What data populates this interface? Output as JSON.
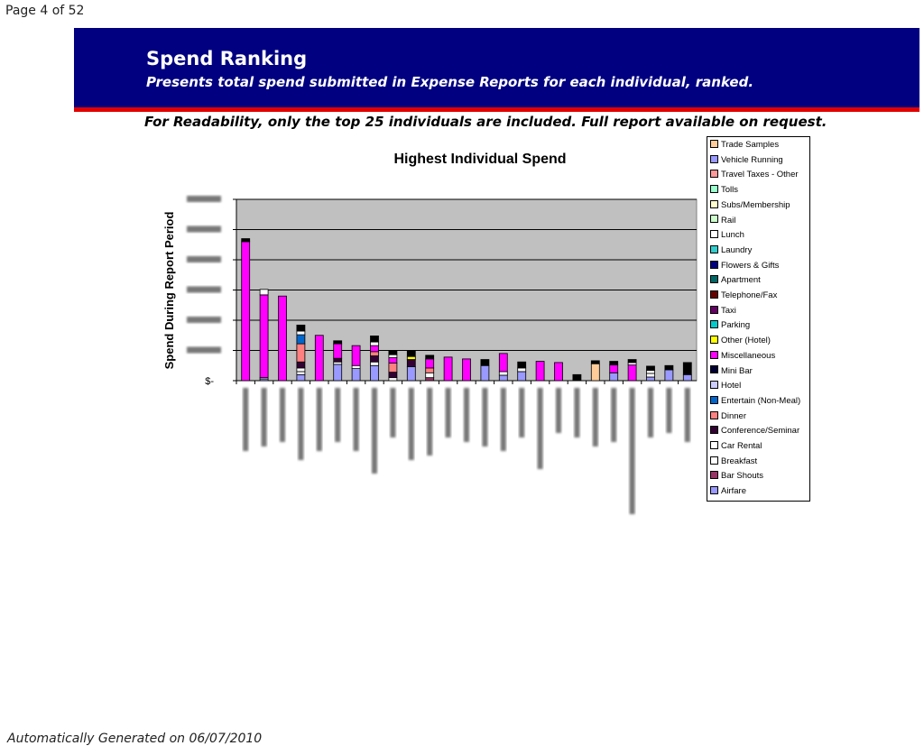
{
  "page": {
    "number_label": "Page 4 of  52"
  },
  "banner": {
    "title": "Spend Ranking",
    "subtitle": "Presents total spend submitted in Expense Reports for each individual, ranked."
  },
  "note": "For Readability, only the top 25 individuals are included.  Full report available on request.",
  "footer": "Automatically Generated on 06/07/2010",
  "chart_data": {
    "type": "bar",
    "stacked": true,
    "title": "Highest Individual Spend",
    "ylabel": "Spend During Report Period",
    "xlabel": "",
    "ylim": [
      0,
      30000
    ],
    "y_ticks": [
      0,
      5000,
      10000,
      15000,
      20000,
      25000,
      30000
    ],
    "y_tick_labels_visible": [
      "$-"
    ],
    "y_tick_labels_blurred": true,
    "x_tick_labels_blurred": true,
    "categories": [
      "1",
      "2",
      "3",
      "4",
      "5",
      "6",
      "7",
      "8",
      "9",
      "10",
      "11",
      "12",
      "13",
      "14",
      "15",
      "16",
      "17",
      "18",
      "19",
      "20",
      "21",
      "22",
      "23",
      "24",
      "25"
    ],
    "grid": true,
    "plot_background": "#c0c0c0",
    "legend_position": "right",
    "series": [
      {
        "name": "Trade Samples",
        "color": "#ffcc99",
        "values": [
          0,
          0,
          0,
          0,
          0,
          0,
          0,
          0,
          0,
          0,
          0,
          0,
          0,
          0,
          0,
          0,
          0,
          0,
          0,
          2800,
          0,
          0,
          0,
          0,
          0
        ]
      },
      {
        "name": "Vehicle Running",
        "color": "#9999ff",
        "values": [
          0,
          0,
          0,
          0,
          0,
          0,
          0,
          0,
          0,
          0,
          0,
          0,
          0,
          0,
          0,
          0,
          0,
          0,
          0,
          0,
          0,
          0,
          0,
          0,
          0
        ]
      },
      {
        "name": "Travel Taxes - Other",
        "color": "#ff9999",
        "values": [
          0,
          0,
          0,
          0,
          0,
          0,
          0,
          0,
          0,
          0,
          0,
          0,
          0,
          0,
          0,
          0,
          0,
          0,
          0,
          0,
          0,
          0,
          0,
          0,
          0
        ]
      },
      {
        "name": "Tolls",
        "color": "#99ffcc",
        "values": [
          0,
          0,
          0,
          0,
          0,
          0,
          0,
          0,
          0,
          0,
          0,
          0,
          0,
          0,
          0,
          0,
          0,
          0,
          0,
          0,
          0,
          0,
          0,
          0,
          0
        ]
      },
      {
        "name": "Subs/Membership",
        "color": "#ffffcc",
        "values": [
          0,
          0,
          0,
          0,
          0,
          0,
          0,
          0,
          0,
          0,
          0,
          0,
          0,
          0,
          0,
          0,
          0,
          0,
          0,
          0,
          0,
          0,
          0,
          0,
          0
        ]
      },
      {
        "name": "Rail",
        "color": "#ccffcc",
        "values": [
          0,
          0,
          0,
          0,
          0,
          0,
          0,
          0,
          0,
          0,
          0,
          0,
          0,
          0,
          0,
          0,
          0,
          0,
          0,
          0,
          0,
          0,
          0,
          0,
          0
        ]
      },
      {
        "name": "Lunch",
        "color": "#ffffff",
        "values": [
          0,
          900,
          0,
          600,
          0,
          0,
          0,
          600,
          500,
          0,
          0,
          0,
          0,
          0,
          0,
          600,
          0,
          0,
          0,
          0,
          0,
          400,
          500,
          0,
          0
        ]
      },
      {
        "name": "Laundry",
        "color": "#33cccc",
        "values": [
          0,
          0,
          0,
          0,
          0,
          0,
          0,
          0,
          0,
          0,
          0,
          0,
          0,
          0,
          0,
          0,
          0,
          0,
          0,
          0,
          0,
          0,
          0,
          0,
          0
        ]
      },
      {
        "name": "Flowers & Gifts",
        "color": "#000080",
        "values": [
          0,
          0,
          0,
          0,
          0,
          0,
          0,
          0,
          0,
          0,
          0,
          0,
          0,
          0,
          0,
          0,
          0,
          0,
          0,
          0,
          0,
          0,
          0,
          0,
          0
        ]
      },
      {
        "name": "Apartment",
        "color": "#006666",
        "values": [
          0,
          0,
          0,
          0,
          0,
          0,
          0,
          0,
          0,
          0,
          0,
          0,
          0,
          0,
          0,
          0,
          0,
          0,
          0,
          0,
          0,
          0,
          0,
          0,
          0
        ]
      },
      {
        "name": "Telephone/Fax",
        "color": "#660000",
        "values": [
          0,
          0,
          0,
          0,
          0,
          0,
          0,
          0,
          0,
          0,
          0,
          0,
          0,
          0,
          0,
          0,
          0,
          0,
          0,
          0,
          0,
          0,
          0,
          0,
          0
        ]
      },
      {
        "name": "Taxi",
        "color": "#660066",
        "values": [
          0,
          0,
          0,
          0,
          0,
          0,
          0,
          0,
          0,
          0,
          0,
          0,
          0,
          0,
          0,
          0,
          0,
          0,
          0,
          0,
          0,
          0,
          0,
          0,
          0
        ]
      },
      {
        "name": "Parking",
        "color": "#00cccc",
        "values": [
          0,
          0,
          0,
          0,
          0,
          0,
          0,
          0,
          0,
          0,
          0,
          0,
          0,
          0,
          0,
          0,
          0,
          0,
          0,
          0,
          0,
          0,
          0,
          0,
          0
        ]
      },
      {
        "name": "Other (Hotel)",
        "color": "#ffff00",
        "values": [
          0,
          0,
          0,
          0,
          0,
          0,
          0,
          0,
          0,
          500,
          0,
          0,
          0,
          0,
          0,
          0,
          0,
          0,
          0,
          0,
          0,
          0,
          0,
          0,
          0
        ]
      },
      {
        "name": "Miscellaneous",
        "color": "#ff00ff",
        "values": [
          23000,
          13700,
          14000,
          0,
          7500,
          2400,
          3300,
          1000,
          900,
          0,
          1500,
          3900,
          3600,
          0,
          3000,
          0,
          3200,
          3000,
          0,
          0,
          1300,
          2600,
          0,
          0,
          0
        ]
      },
      {
        "name": "Mini Bar",
        "color": "#000033",
        "values": [
          0,
          0,
          0,
          0,
          0,
          0,
          0,
          0,
          0,
          0,
          0,
          0,
          0,
          0,
          0,
          0,
          0,
          0,
          0,
          0,
          0,
          0,
          0,
          0,
          0
        ]
      },
      {
        "name": "Hotel",
        "color": "#ccccff",
        "values": [
          0,
          0,
          0,
          0,
          0,
          0,
          0,
          0,
          0,
          0,
          0,
          0,
          0,
          0,
          0,
          0,
          0,
          0,
          0,
          0,
          0,
          0,
          0,
          0,
          0
        ]
      },
      {
        "name": "Entertain (Non-Meal)",
        "color": "#0066cc",
        "values": [
          0,
          0,
          0,
          1500,
          0,
          0,
          0,
          0,
          0,
          0,
          0,
          0,
          0,
          0,
          0,
          0,
          0,
          0,
          0,
          0,
          0,
          0,
          0,
          0,
          0
        ]
      },
      {
        "name": "Dinner",
        "color": "#ff8080",
        "values": [
          0,
          0,
          0,
          3000,
          0,
          0,
          0,
          700,
          1500,
          0,
          800,
          0,
          0,
          0,
          0,
          0,
          0,
          0,
          0,
          0,
          0,
          0,
          0,
          0,
          0
        ]
      },
      {
        "name": "Conference/Seminar",
        "color": "#330033",
        "values": [
          0,
          0,
          0,
          1000,
          0,
          600,
          0,
          1000,
          900,
          1200,
          0,
          0,
          0,
          0,
          0,
          0,
          0,
          0,
          0,
          0,
          0,
          0,
          0,
          0,
          0
        ]
      },
      {
        "name": "Car Rental",
        "color": "#ffffff",
        "values": [
          0,
          0,
          0,
          600,
          0,
          0,
          500,
          0,
          0,
          0,
          0,
          0,
          0,
          0,
          0,
          0,
          0,
          0,
          0,
          0,
          0,
          0,
          0,
          0,
          0
        ]
      },
      {
        "name": "Breakfast",
        "color": "#ffffff",
        "values": [
          0,
          200,
          0,
          500,
          0,
          400,
          0,
          600,
          500,
          0,
          800,
          0,
          0,
          0,
          600,
          0,
          0,
          0,
          0,
          0,
          0,
          0,
          600,
          0,
          0
        ]
      },
      {
        "name": "Bar Shouts",
        "color": "#993366",
        "values": [
          0,
          0,
          0,
          0,
          0,
          0,
          0,
          0,
          0,
          0,
          500,
          0,
          0,
          0,
          0,
          0,
          0,
          0,
          0,
          0,
          0,
          0,
          0,
          0,
          0
        ]
      },
      {
        "name": "Airfare",
        "color": "#9999ff",
        "values": [
          0,
          300,
          0,
          1000,
          0,
          2700,
          2000,
          2500,
          0,
          2300,
          0,
          0,
          0,
          2500,
          900,
          1500,
          0,
          0,
          0,
          0,
          1300,
          0,
          600,
          1800,
          1000
        ]
      },
      {
        "name": "(unlabeled black cap)",
        "color": "#000000",
        "values": [
          500,
          0,
          0,
          1000,
          0,
          500,
          0,
          1000,
          700,
          1000,
          600,
          0,
          0,
          1000,
          0,
          1000,
          0,
          0,
          1000,
          500,
          600,
          500,
          700,
          700,
          2000
        ]
      }
    ]
  },
  "legend_items": [
    {
      "label": "Trade Samples",
      "color": "#ffcc99"
    },
    {
      "label": "Vehicle Running",
      "color": "#9999ff"
    },
    {
      "label": "Travel Taxes - Other",
      "color": "#ff9999"
    },
    {
      "label": "Tolls",
      "color": "#99ffcc"
    },
    {
      "label": "Subs/Membership",
      "color": "#ffffcc"
    },
    {
      "label": "Rail",
      "color": "#ccffcc"
    },
    {
      "label": "Lunch",
      "color": "#ffffff"
    },
    {
      "label": "Laundry",
      "color": "#33cccc"
    },
    {
      "label": "Flowers & Gifts",
      "color": "#000080"
    },
    {
      "label": "Apartment",
      "color": "#006666"
    },
    {
      "label": "Telephone/Fax",
      "color": "#660000"
    },
    {
      "label": "Taxi",
      "color": "#660066"
    },
    {
      "label": "Parking",
      "color": "#00cccc"
    },
    {
      "label": "Other (Hotel)",
      "color": "#ffff00"
    },
    {
      "label": "Miscellaneous",
      "color": "#ff00ff"
    },
    {
      "label": "Mini Bar",
      "color": "#000033"
    },
    {
      "label": "Hotel",
      "color": "#ccccff"
    },
    {
      "label": "Entertain (Non-Meal)",
      "color": "#0066cc"
    },
    {
      "label": "Dinner",
      "color": "#ff8080"
    },
    {
      "label": "Conference/Seminar",
      "color": "#330033"
    },
    {
      "label": "Car Rental",
      "color": "#ffffff"
    },
    {
      "label": "Breakfast",
      "color": "#ffffff"
    },
    {
      "label": "Bar Shouts",
      "color": "#993366"
    },
    {
      "label": "Airfare",
      "color": "#9999ff"
    }
  ]
}
